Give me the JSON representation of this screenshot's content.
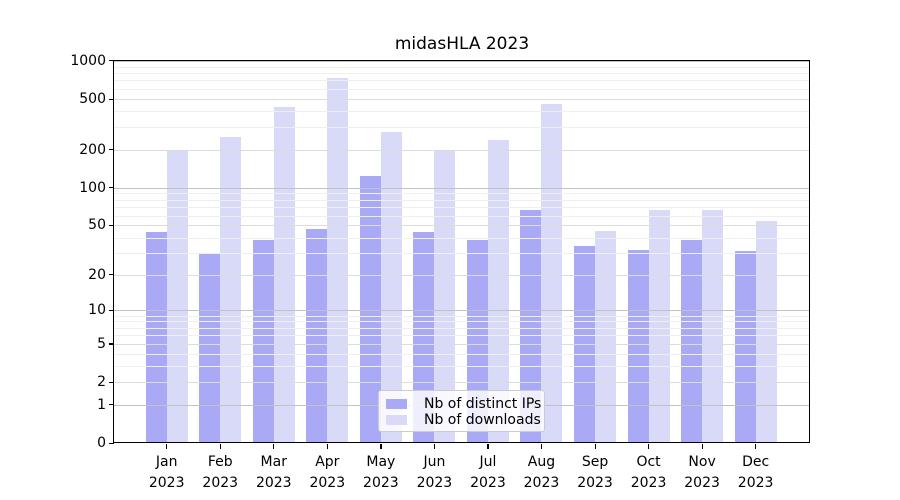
{
  "title": "midasHLA 2023",
  "legend": {
    "items": [
      {
        "label": "Nb of distinct IPs",
        "color": "#a9a9f5"
      },
      {
        "label": "Nb of downloads",
        "color": "#d9d9f8"
      }
    ]
  },
  "colors": {
    "bar_dark": "#a9a9f5",
    "bar_light": "#d9d9f8",
    "grid_power10": "#c2c2c2",
    "grid_labeled": "#dcdcdc",
    "grid_minor": "#efefef",
    "axis": "#000000"
  },
  "chart_data": {
    "type": "bar",
    "title": "midasHLA 2023",
    "categories": [
      "Jan 2023",
      "Feb 2023",
      "Mar 2023",
      "Apr 2023",
      "May 2023",
      "Jun 2023",
      "Jul 2023",
      "Aug 2023",
      "Sep 2023",
      "Oct 2023",
      "Nov 2023",
      "Dec 2023"
    ],
    "series": [
      {
        "name": "Nb of distinct IPs",
        "color": "#a9a9f5",
        "values": [
          44,
          30,
          38,
          47,
          124,
          44,
          38,
          67,
          34,
          32,
          38,
          31
        ]
      },
      {
        "name": "Nb of downloads",
        "color": "#d9d9f8",
        "values": [
          195,
          250,
          430,
          730,
          275,
          200,
          240,
          460,
          45,
          66,
          67,
          54
        ]
      }
    ],
    "xlabel": "",
    "ylabel": "",
    "yscale": "pseudo-log: y = log10(1 + value)",
    "yticks": [
      0,
      1,
      2,
      5,
      10,
      20,
      50,
      100,
      200,
      500,
      1000
    ],
    "yticks_minor": [
      3,
      4,
      6,
      7,
      8,
      9,
      30,
      40,
      60,
      70,
      80,
      90,
      300,
      400,
      600,
      700,
      800,
      900
    ],
    "ylim": [
      0,
      1000
    ],
    "grid": "horizontal, drawn over bars",
    "legend_position": "lower center inside plot"
  }
}
